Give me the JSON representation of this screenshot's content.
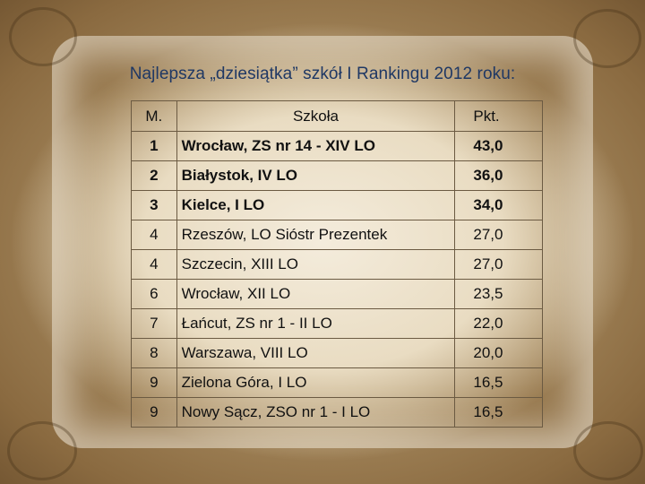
{
  "title": "Najlepsza „dziesiątka” szkół I Rankingu 2012 roku:",
  "table": {
    "headers": {
      "rank": "M.",
      "school": "Szkoła",
      "points": "Pkt."
    },
    "rows": [
      {
        "rank": "1",
        "school": "Wrocław, ZS nr 14 - XIV LO",
        "points": "43,0"
      },
      {
        "rank": "2",
        "school": "Białystok, IV LO",
        "points": "36,0"
      },
      {
        "rank": "3",
        "school": "Kielce, I LO",
        "points": "34,0"
      },
      {
        "rank": "4",
        "school": "Rzeszów, LO Sióstr Prezentek",
        "points": "27,0"
      },
      {
        "rank": "4",
        "school": "Szczecin, XIII LO",
        "points": "27,0"
      },
      {
        "rank": "6",
        "school": "Wrocław, XII LO",
        "points": "23,5"
      },
      {
        "rank": "7",
        "school": "Łańcut, ZS nr 1 - II LO",
        "points": "22,0"
      },
      {
        "rank": "8",
        "school": "Warszawa, VIII LO",
        "points": "20,0"
      },
      {
        "rank": "9",
        "school": "Zielona Góra, I LO",
        "points": "16,5"
      },
      {
        "rank": "9",
        "school": "Nowy Sącz, ZSO nr 1 - I LO",
        "points": "16,5"
      }
    ]
  },
  "colors": {
    "title_text": "#1f3864",
    "background_light": "#f4ecdc",
    "background_dark": "#4a3219",
    "table_border": "#6b5a42"
  }
}
